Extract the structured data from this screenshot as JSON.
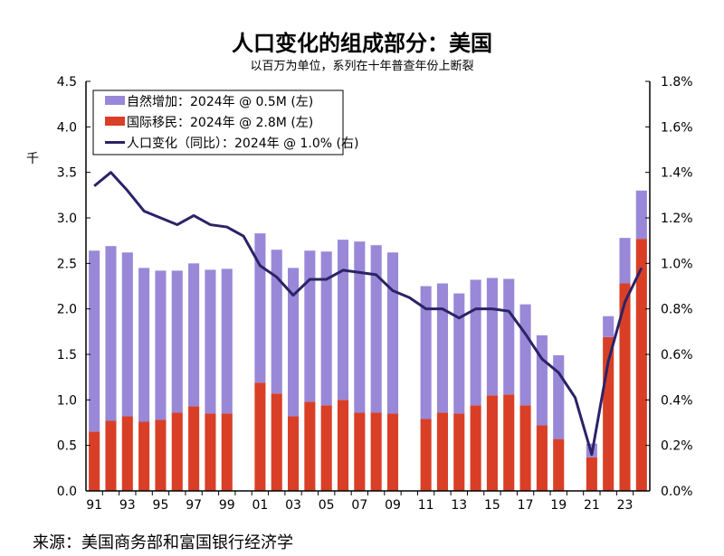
{
  "chart_data": {
    "type": "bar",
    "stacked": true,
    "title": "人口变化的组成部分：美国",
    "subtitle": "以百万为单位，系列在十年普查年份上断裂",
    "ylabel": "千",
    "ylim": [
      0,
      4.5
    ],
    "y2lim": [
      0,
      1.8
    ],
    "yticks": [
      "0.0",
      "0.5",
      "1.0",
      "1.5",
      "2.0",
      "2.5",
      "3.0",
      "3.5",
      "4.0",
      "4.5"
    ],
    "y2ticks": [
      "0.0%",
      "0.2%",
      "0.4%",
      "0.6%",
      "0.8%",
      "1.0%",
      "1.2%",
      "1.4%",
      "1.6%",
      "1.8%"
    ],
    "xticks": [
      "91",
      "93",
      "95",
      "97",
      "99",
      "01",
      "03",
      "05",
      "07",
      "09",
      "11",
      "13",
      "15",
      "17",
      "19",
      "21",
      "23"
    ],
    "x": [
      1991,
      1992,
      1993,
      1994,
      1995,
      1996,
      1997,
      1998,
      1999,
      2000,
      2001,
      2002,
      2003,
      2004,
      2005,
      2006,
      2007,
      2008,
      2009,
      2010,
      2011,
      2012,
      2013,
      2014,
      2015,
      2016,
      2017,
      2018,
      2019,
      2020,
      2021,
      2022,
      2023,
      2024
    ],
    "grid": false,
    "legend_position": "top-left",
    "series": [
      {
        "name": "国际移民：2024年 @ 2.8M (左)",
        "kind": "bar",
        "axis": "left",
        "color": "#d93f26",
        "values": [
          0.65,
          0.77,
          0.82,
          0.76,
          0.78,
          0.86,
          0.93,
          0.85,
          0.85,
          null,
          1.19,
          1.07,
          0.82,
          0.98,
          0.94,
          1.0,
          0.86,
          0.86,
          0.85,
          null,
          0.79,
          0.86,
          0.85,
          0.94,
          1.05,
          1.06,
          0.94,
          0.72,
          0.57,
          null,
          0.37,
          1.69,
          2.28,
          2.77
        ]
      },
      {
        "name": "自然增加：2024年 @ 0.5M (左)",
        "kind": "bar",
        "axis": "left",
        "color": "#9988d8",
        "values": [
          1.99,
          1.92,
          1.8,
          1.69,
          1.64,
          1.56,
          1.57,
          1.58,
          1.59,
          null,
          1.64,
          1.58,
          1.63,
          1.66,
          1.69,
          1.76,
          1.88,
          1.84,
          1.77,
          null,
          1.46,
          1.42,
          1.32,
          1.38,
          1.29,
          1.27,
          1.11,
          0.99,
          0.92,
          null,
          0.15,
          0.23,
          0.5,
          0.53
        ]
      },
      {
        "name": "人口变化（同比）：2024年 @ 1.0% (右)",
        "kind": "line",
        "axis": "right",
        "color": "#2b2366",
        "values": [
          1.34,
          1.4,
          1.32,
          1.23,
          1.2,
          1.17,
          1.21,
          1.17,
          1.16,
          1.12,
          0.99,
          0.94,
          0.86,
          0.93,
          0.93,
          0.97,
          0.96,
          0.95,
          0.88,
          0.85,
          0.8,
          0.8,
          0.76,
          0.8,
          0.8,
          0.79,
          0.69,
          0.58,
          0.52,
          0.41,
          0.16,
          0.57,
          0.83,
          0.98
        ]
      }
    ]
  },
  "source": "来源：美国商务部和富国银行经济学"
}
